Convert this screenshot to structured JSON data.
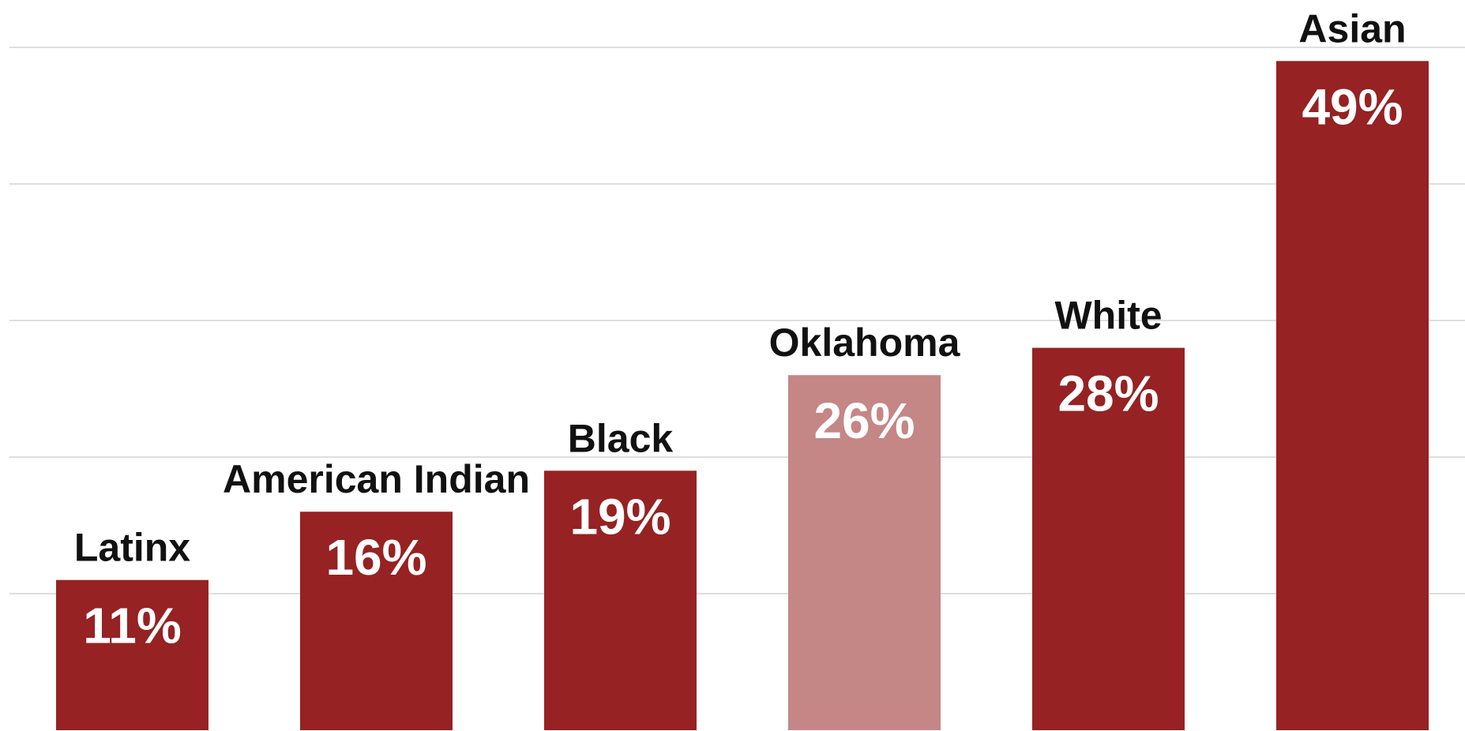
{
  "chart_data": {
    "type": "bar",
    "categories": [
      "Latinx",
      "American Indian",
      "Black",
      "Oklahoma",
      "White",
      "Asian"
    ],
    "values": [
      11,
      16,
      19,
      26,
      28,
      49
    ],
    "value_labels": [
      "11%",
      "16%",
      "19%",
      "26%",
      "28%",
      "49%"
    ],
    "highlight_category": "Oklahoma",
    "unit": "%",
    "ylim": [
      0,
      50
    ],
    "grid": true,
    "legend": "none",
    "colors": {
      "bar": "#962223",
      "highlight": "#c58686",
      "grid": "#dedede",
      "category_text": "#111111",
      "value_text": "#ffffff"
    }
  }
}
